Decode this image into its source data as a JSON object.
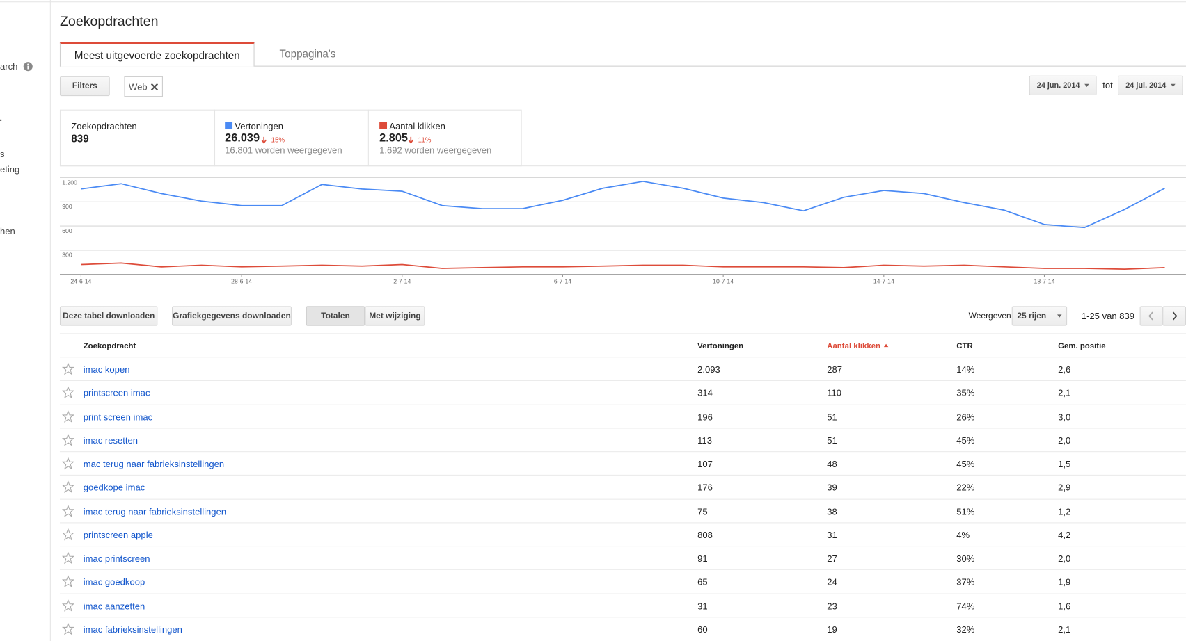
{
  "sidebar": {
    "items": [
      "arch",
      "s",
      "eting",
      "hen"
    ]
  },
  "header": {
    "title": "Zoekopdrachten"
  },
  "tabs": [
    "Meest uitgevoerde zoekopdrachten",
    "Toppagina's"
  ],
  "filters": {
    "button": "Filters",
    "chip": "Web"
  },
  "date_range": {
    "start": "24 jun. 2014",
    "separator": "tot",
    "end": "24 jul. 2014"
  },
  "summary": {
    "queries_label": "Zoekopdrachten",
    "queries_value": "839",
    "impressions_value": "26.039",
    "impressions_change": "-15%",
    "impressions_note": "16.801 worden weergegeven",
    "clicks_value": "2.805",
    "clicks_change": "-11%",
    "clicks_note": "1.692 worden weergegeven"
  },
  "chart_data": {
    "type": "line",
    "categories": [
      "24-6-14",
      null,
      null,
      null,
      "28-6-14",
      null,
      null,
      null,
      "2-7-14",
      null,
      null,
      null,
      "6-7-14",
      null,
      null,
      null,
      "10-7-14",
      null,
      null,
      null,
      "14-7-14",
      null,
      null,
      null,
      "18-7-14",
      null,
      null,
      null
    ],
    "series": [
      {
        "name": "Vertoningen",
        "color": "#4a8af4",
        "values": [
          1059,
          1125,
          1003,
          909,
          853,
          853,
          1116,
          1059,
          1031,
          853,
          816,
          816,
          919,
          1069,
          1153,
          1069,
          947,
          891,
          788,
          956,
          1041,
          1003,
          891,
          797,
          619,
          581,
          806,
          1069
        ]
      },
      {
        "name": "Aantal klikken",
        "color": "#dd4b39",
        "values": [
          122,
          141,
          94,
          113,
          94,
          103,
          113,
          103,
          122,
          75,
          84,
          94,
          94,
          103,
          113,
          113,
          94,
          94,
          94,
          84,
          113,
          103,
          113,
          94,
          75,
          75,
          66,
          84
        ]
      }
    ],
    "ylim": [
      0,
      1200
    ],
    "yticks": [
      {
        "value": 300,
        "label": "300"
      },
      {
        "value": 600,
        "label": "600"
      },
      {
        "value": 900,
        "label": "900"
      },
      {
        "value": 1200,
        "label": "1.200"
      }
    ],
    "grid": true
  },
  "toolbar": {
    "download_table": "Deze tabel downloaden",
    "download_chart": "Grafiekgegevens downloaden",
    "totals": "Totalen",
    "with_change": "Met wijziging",
    "show_label": "Weergeven",
    "rows_select": "25 rijen",
    "range": "1-25 van 839"
  },
  "table": {
    "columns": [
      "Zoekopdracht",
      "Vertoningen",
      "Aantal klikken",
      "CTR",
      "Gem. positie"
    ],
    "rows": [
      [
        "imac kopen",
        "2.093",
        "287",
        "14%",
        "2,6"
      ],
      [
        "printscreen imac",
        "314",
        "110",
        "35%",
        "2,1"
      ],
      [
        "print screen imac",
        "196",
        "51",
        "26%",
        "3,0"
      ],
      [
        "imac resetten",
        "113",
        "51",
        "45%",
        "2,0"
      ],
      [
        "mac terug naar fabrieksinstellingen",
        "107",
        "48",
        "45%",
        "1,5"
      ],
      [
        "goedkope imac",
        "176",
        "39",
        "22%",
        "2,9"
      ],
      [
        "imac terug naar fabrieksinstellingen",
        "75",
        "38",
        "51%",
        "1,2"
      ],
      [
        "printscreen apple",
        "808",
        "31",
        "4%",
        "4,2"
      ],
      [
        "imac printscreen",
        "91",
        "27",
        "30%",
        "2,0"
      ],
      [
        "imac goedkoop",
        "65",
        "24",
        "37%",
        "1,9"
      ],
      [
        "imac aanzetten",
        "31",
        "23",
        "74%",
        "1,6"
      ],
      [
        "imac fabrieksinstellingen",
        "60",
        "19",
        "32%",
        "2,1"
      ]
    ]
  }
}
